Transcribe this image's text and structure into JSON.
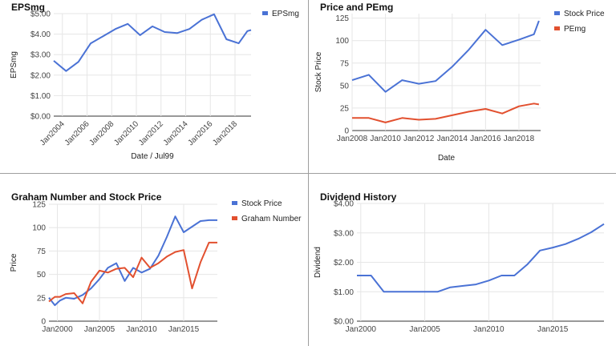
{
  "colors": {
    "blue": "#4a72d5",
    "red": "#e2502f",
    "grid": "#e6e6e6",
    "axis": "#333333",
    "tick": "#444444"
  },
  "chart_data": [
    {
      "id": "epsmg",
      "type": "line",
      "title": "EPSmg",
      "xlabel": "Date / Jul99",
      "ylabel": "EPSmg",
      "ylim": [
        0,
        5
      ],
      "xlim": [
        2003.3,
        2019.3
      ],
      "y_ticks": [
        0,
        1,
        2,
        3,
        4,
        5
      ],
      "y_tick_labels": [
        "$0.00",
        "$1.00",
        "$2.00",
        "$3.00",
        "$4.00",
        "$5.00"
      ],
      "x_ticks": [
        2004,
        2006,
        2008,
        2010,
        2012,
        2014,
        2016,
        2018
      ],
      "x_tick_labels": [
        "Jan2004",
        "Jan2006",
        "Jan2008",
        "Jan2010",
        "Jan2012",
        "Jan2014",
        "Jan2016",
        "Jan2018"
      ],
      "legend_position": "top-right",
      "series": [
        {
          "name": "EPSmg",
          "color": "#4a72d5",
          "x": [
            2003.3,
            2004.3,
            2005.3,
            2006.3,
            2007.3,
            2008.3,
            2009.3,
            2010.3,
            2011.3,
            2012.3,
            2013.3,
            2014.3,
            2015.3,
            2016.3,
            2017.3,
            2018.3,
            2019.0,
            2019.3
          ],
          "values": [
            2.7,
            2.2,
            2.65,
            3.55,
            3.9,
            4.25,
            4.5,
            3.95,
            4.38,
            4.1,
            4.05,
            4.25,
            4.7,
            4.97,
            3.75,
            3.55,
            4.15,
            4.2
          ]
        }
      ]
    },
    {
      "id": "price-pe",
      "type": "line",
      "title": "Price and PEmg",
      "xlabel": "Date",
      "ylabel": "Stock Price",
      "ylim": [
        0,
        130
      ],
      "xlim": [
        2008,
        2019.3
      ],
      "y_ticks": [
        0,
        25,
        50,
        75,
        100,
        125
      ],
      "y_tick_labels": [
        "0",
        "25",
        "50",
        "75",
        "100",
        "125"
      ],
      "x_ticks": [
        2008,
        2010,
        2012,
        2014,
        2016,
        2018
      ],
      "x_tick_labels": [
        "Jan2008",
        "Jan2010",
        "Jan2012",
        "Jan2014",
        "Jan2016",
        "Jan2018"
      ],
      "legend_position": "top-right",
      "series": [
        {
          "name": "Stock Price",
          "color": "#4a72d5",
          "x": [
            2008,
            2009,
            2010,
            2011,
            2012,
            2013,
            2014,
            2015,
            2016,
            2017,
            2018,
            2018.9,
            2019.2
          ],
          "values": [
            56,
            62,
            43,
            56,
            52,
            55,
            71,
            90,
            112,
            95,
            101,
            107,
            122
          ]
        },
        {
          "name": "PEmg",
          "color": "#e2502f",
          "x": [
            2008,
            2009,
            2010,
            2011,
            2012,
            2013,
            2014,
            2015,
            2016,
            2017,
            2018,
            2018.9,
            2019.2
          ],
          "values": [
            14,
            14,
            9,
            14,
            12,
            13,
            17,
            21,
            24,
            19,
            27,
            30,
            29
          ]
        }
      ]
    },
    {
      "id": "graham",
      "type": "line",
      "title": "Graham Number and Stock Price",
      "xlabel": "",
      "ylabel": "Price",
      "ylim": [
        0,
        125
      ],
      "xlim": [
        1999,
        2019
      ],
      "y_ticks": [
        0,
        25,
        50,
        75,
        100,
        125
      ],
      "y_tick_labels": [
        "0",
        "25",
        "50",
        "75",
        "100",
        "125"
      ],
      "x_ticks": [
        2000,
        2005,
        2010,
        2015
      ],
      "x_tick_labels": [
        "Jan2000",
        "Jan2005",
        "Jan2010",
        "Jan2015"
      ],
      "legend_position": "top-right",
      "series": [
        {
          "name": "Stock Price",
          "color": "#4a72d5",
          "x": [
            1999,
            1999.7,
            2000.3,
            2001,
            2002,
            2003,
            2004,
            2005,
            2006,
            2007,
            2008,
            2009,
            2010,
            2011,
            2012,
            2013,
            2014,
            2015,
            2016,
            2017,
            2018,
            2019
          ],
          "values": [
            25,
            17,
            22,
            25,
            24,
            28,
            35,
            45,
            57,
            62,
            43,
            57,
            52,
            56,
            70,
            90,
            112,
            95,
            101,
            107,
            108,
            108
          ]
        },
        {
          "name": "Graham Number",
          "color": "#e2502f",
          "x": [
            1999,
            1999.7,
            2000.3,
            2001,
            2002,
            2003,
            2004,
            2005,
            2006,
            2007,
            2008,
            2009,
            2010,
            2011,
            2012,
            2013,
            2014,
            2015,
            2016,
            2017,
            2018,
            2019
          ],
          "values": [
            21,
            26,
            26,
            29,
            30,
            19,
            42,
            54,
            52,
            56,
            57,
            47,
            68,
            57,
            62,
            69,
            74,
            76,
            35,
            63,
            84,
            84
          ]
        }
      ]
    },
    {
      "id": "dividend",
      "type": "line",
      "title": "Dividend History",
      "xlabel": "",
      "ylabel": "Dividend",
      "ylim": [
        0,
        4
      ],
      "xlim": [
        1999.7,
        2019
      ],
      "y_ticks": [
        0,
        1,
        2,
        3,
        4
      ],
      "y_tick_labels": [
        "$0.00",
        "$1.00",
        "$2.00",
        "$3.00",
        "$4.00"
      ],
      "x_ticks": [
        2000,
        2005,
        2010,
        2015
      ],
      "x_tick_labels": [
        "Jan2000",
        "Jan2005",
        "Jan2010",
        "Jan2015"
      ],
      "series": [
        {
          "name": "",
          "color": "#4a72d5",
          "x": [
            1999.7,
            2000.8,
            2001.8,
            2003,
            2004,
            2005,
            2006,
            2007,
            2008,
            2009,
            2010,
            2011,
            2012,
            2013,
            2014,
            2015,
            2016,
            2017,
            2018,
            2019
          ],
          "values": [
            1.55,
            1.55,
            1.0,
            1.0,
            1.0,
            1.0,
            1.0,
            1.15,
            1.2,
            1.25,
            1.38,
            1.55,
            1.55,
            1.92,
            2.4,
            2.5,
            2.62,
            2.8,
            3.02,
            3.3
          ]
        }
      ]
    }
  ]
}
